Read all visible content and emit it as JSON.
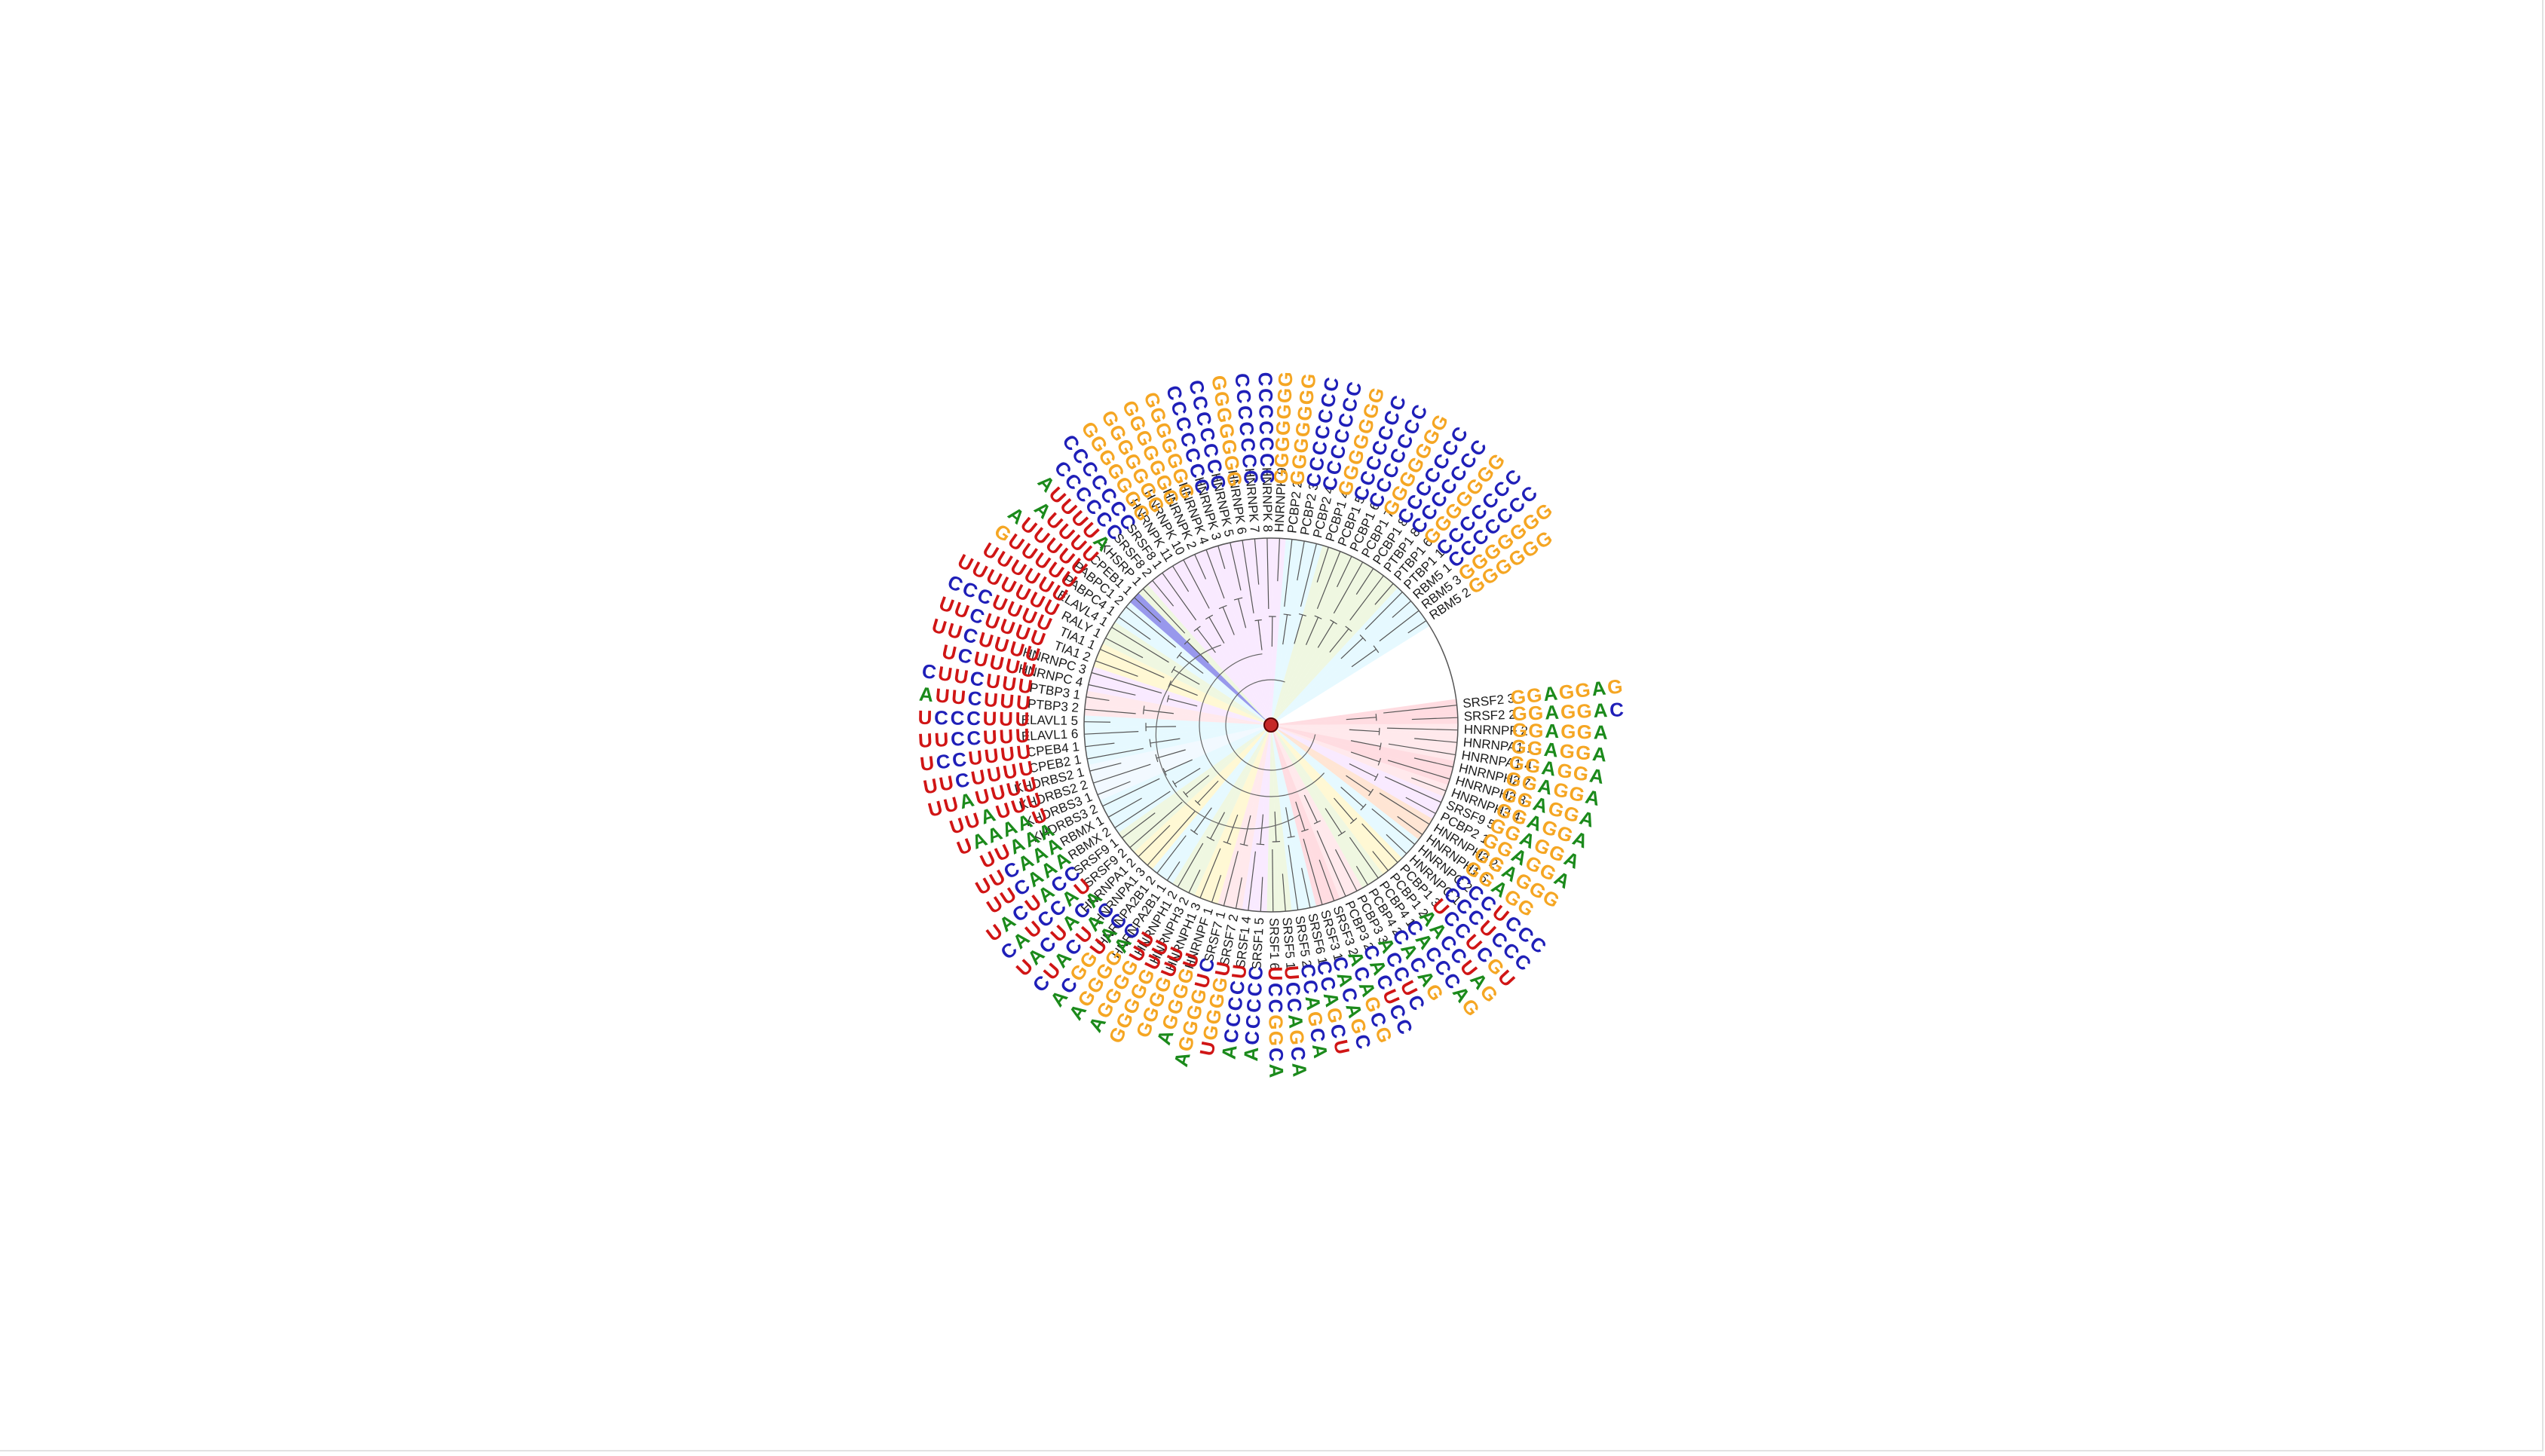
{
  "figure": {
    "type": "circular-dendrogram-with-sequence-logos",
    "root_color": "#c62828",
    "nucleotide_colors": {
      "A": "#1b8a1b",
      "C": "#1f1fb8",
      "G": "#f5a623",
      "U": "#d01515"
    },
    "leaves": [
      {
        "label": "SRSF2 3",
        "clade": "#ffc0c8",
        "motif": "GGAGGAG"
      },
      {
        "label": "SRSF2 2",
        "clade": "#ffc0c8",
        "motif": "GGAGGAC"
      },
      {
        "label": "HNRNPF 2",
        "clade": "#ffd7dc",
        "motif": "GGAGGA"
      },
      {
        "label": "HNRNPA1 1",
        "clade": "#ffd7dc",
        "motif": "GGAGGA"
      },
      {
        "label": "HNRNPA1 4",
        "clade": "#ffd7dc",
        "motif": "GGAGGA"
      },
      {
        "label": "HNRNPH2 7",
        "clade": "#ffc0c8",
        "motif": "GGAGGA"
      },
      {
        "label": "HNRNPH2 3",
        "clade": "#ffc0c8",
        "motif": "GGAGGA"
      },
      {
        "label": "HNRNPH3 4",
        "clade": "#ffd7dc",
        "motif": "GGAGGA"
      },
      {
        "label": "SRSF9 5",
        "clade": "#f4d9ff",
        "motif": "GGAGGA"
      },
      {
        "label": "PCBP2 1",
        "clade": "#f4d9ff",
        "motif": "GGAGGA"
      },
      {
        "label": "HNRNPH2 2",
        "clade": "#ffd0b0",
        "motif": "GGAGGG"
      },
      {
        "label": "HNRNPH1 5",
        "clade": "#ffd0b0",
        "motif": "GGAGG"
      },
      {
        "label": "HNRNPC 2",
        "clade": "#d2f4ff",
        "motif": "CCCUCCC"
      },
      {
        "label": "HNRNPC 1",
        "clade": "#d2f4ff",
        "motif": "CCCUCCC"
      },
      {
        "label": "PCBP1 3",
        "clade": "#fff3b0",
        "motif": "UCCUCGU"
      },
      {
        "label": "PCBP1 2",
        "clade": "#fff3b0",
        "motif": "AACCUAG"
      },
      {
        "label": "PCBP4 1",
        "clade": "#e2f0c8",
        "motif": "CACCCAG"
      },
      {
        "label": "PCBP4 2",
        "clade": "#e2f0c8",
        "motif": "CACAG"
      },
      {
        "label": "PCBP3 3",
        "clade": "#ffd7dc",
        "motif": "ACCUC"
      },
      {
        "label": "PCBP3 2",
        "clade": "#ffd7dc",
        "motif": "CACUCC"
      },
      {
        "label": "SRSF3 2",
        "clade": "#ffc0c8",
        "motif": "ACAGCG"
      },
      {
        "label": "SRSF3 1",
        "clade": "#ffc0c8",
        "motif": "CACAGC"
      },
      {
        "label": "SRSF6 1",
        "clade": "#d2f4ff",
        "motif": "CCAGCU"
      },
      {
        "label": "SRSF5 2",
        "clade": "#d2f4ff",
        "motif": "CCAGCA"
      },
      {
        "label": "SRSF5 1",
        "clade": "#e2f0c8",
        "motif": "UCCAGCA"
      },
      {
        "label": "SRSF1 6",
        "clade": "#e2f0c8",
        "motif": "UCCGGCA"
      },
      {
        "label": "SRSF1 5",
        "clade": "#f4d9ff",
        "motif": "CCCCCA"
      },
      {
        "label": "SRSF1 4",
        "clade": "#f4d9ff",
        "motif": "UCCCCA"
      },
      {
        "label": "SRSF7 2",
        "clade": "#ffd7dc",
        "motif": "UGGGGU"
      },
      {
        "label": "SRSF7 1",
        "clade": "#ffd7dc",
        "motif": "CUGGGGA"
      },
      {
        "label": "HNRNPF 1",
        "clade": "#fff3b0",
        "motif": "UGGGGA"
      },
      {
        "label": "HNRNPH1 3",
        "clade": "#fff3b0",
        "motif": "UUGGGG"
      },
      {
        "label": "HNRNPH3 2",
        "clade": "#e2f0c8",
        "motif": "UUGGGGG"
      },
      {
        "label": "HNRNPH1 2",
        "clade": "#e2f0c8",
        "motif": "UUGGGGA"
      },
      {
        "label": "HNRNPA2B1 1",
        "clade": "#d2f4ff",
        "motif": "CAGGGGA"
      },
      {
        "label": "HNRNPA2B1 2",
        "clade": "#d2f4ff",
        "motif": "CAUGGCA"
      },
      {
        "label": "HNRNPA1 3",
        "clade": "#fff3b0",
        "motif": "CAUCAUC"
      },
      {
        "label": "HNRNPA1 2",
        "clade": "#fff3b0",
        "motif": "ACAUCAU"
      },
      {
        "label": "SRSF9 2",
        "clade": "#e2f0c8",
        "motif": "UACCUAC"
      },
      {
        "label": "SRSF9 1",
        "clade": "#e2f0c8",
        "motif": "CCAUCAU"
      },
      {
        "label": "RBMX 2",
        "clade": "#d2f4ff",
        "motif": "AAACUU"
      },
      {
        "label": "RBMX 1",
        "clade": "#d2f4ff",
        "motif": "AAACUU"
      },
      {
        "label": "KHDRBS3 2",
        "clade": "#d2f4ff",
        "motif": "AAAUU"
      },
      {
        "label": "KHDRBS3 1",
        "clade": "#e8f4ff",
        "motif": "UAAAAU"
      },
      {
        "label": "KHDRBS2 2",
        "clade": "#e8f4ff",
        "motif": "UUUAUU"
      },
      {
        "label": "KHDRBS2 1",
        "clade": "#e8f4ff",
        "motif": "UUUUAUU"
      },
      {
        "label": "CPEB2 1",
        "clade": "#d2f4ff",
        "motif": "UUUUCUU"
      },
      {
        "label": "CPEB4 1",
        "clade": "#d2f4ff",
        "motif": "UUUUCCU"
      },
      {
        "label": "ELAVL1 6",
        "clade": "#d2f4ff",
        "motif": "UUUCCUU"
      },
      {
        "label": "ELAVL1 5",
        "clade": "#d2f4ff",
        "motif": "UUUCCCU"
      },
      {
        "label": "PTBP3 2",
        "clade": "#ffd7dc",
        "motif": "UUUCUUA"
      },
      {
        "label": "PTBP3 1",
        "clade": "#ffd7dc",
        "motif": "UUUCUUC"
      },
      {
        "label": "HNRNPC 4",
        "clade": "#f4d9ff",
        "motif": "UUUUCU"
      },
      {
        "label": "HNRNPC 3",
        "clade": "#f4d9ff",
        "motif": "UUUUCUU"
      },
      {
        "label": "TIA1 2",
        "clade": "#fff3b0",
        "motif": "UUUUCUU"
      },
      {
        "label": "TIA1 1",
        "clade": "#fff3b0",
        "motif": "UUUUCCC"
      },
      {
        "label": "RALY 1",
        "clade": "#e2f0c8",
        "motif": "UUUUUUU"
      },
      {
        "label": "ELAVL4 1",
        "clade": "#e2f0c8",
        "motif": "UUUUUU"
      },
      {
        "label": "PABPC4 1",
        "clade": "#d2f4ff",
        "motif": "UUUUUG"
      },
      {
        "label": "PABPC1 2",
        "clade": "#d2f4ff",
        "motif": "UUUUUA"
      },
      {
        "label": "CPEB1 1",
        "clade": "#4444dd",
        "motif": "UUUUA"
      },
      {
        "label": "KHSRP 1",
        "clade": "#e2f0c8",
        "motif": "AUUUUA"
      },
      {
        "label": "SRSF8 2",
        "clade": "#f4d9ff",
        "motif": "CCCCCC"
      },
      {
        "label": "SRSF8 1",
        "clade": "#f4d9ff",
        "motif": "CCCCCCC"
      },
      {
        "label": "HNRNPK 11",
        "clade": "#f4d9ff",
        "motif": "GGGGGGG"
      },
      {
        "label": "HNRNPK 10",
        "clade": "#f4d9ff",
        "motif": "GGGGGGG"
      },
      {
        "label": "HNRNPK 2",
        "clade": "#f4d9ff",
        "motif": "GGGGGGG"
      },
      {
        "label": "HNRNPK 4",
        "clade": "#f4d9ff",
        "motif": "GGGGGGG"
      },
      {
        "label": "HNRNPK 3",
        "clade": "#f4d9ff",
        "motif": "CCCCCCC"
      },
      {
        "label": "HNRNPK 5",
        "clade": "#f4d9ff",
        "motif": "CCCCCCC"
      },
      {
        "label": "HNRNPK 6",
        "clade": "#f4d9ff",
        "motif": "GGGGGGG"
      },
      {
        "label": "HNRNPK 7",
        "clade": "#f4d9ff",
        "motif": "CCCCCCC"
      },
      {
        "label": "HNRNPK 8",
        "clade": "#f4d9ff",
        "motif": "CCCCCCC"
      },
      {
        "label": "HNRNPK 9",
        "clade": "#f4d9ff",
        "motif": "GGGGGGG"
      },
      {
        "label": "PCBP2 2",
        "clade": "#d2f4ff",
        "motif": "GGGGGGG"
      },
      {
        "label": "PCBP2 3",
        "clade": "#d2f4ff",
        "motif": "CCCCCCC"
      },
      {
        "label": "PCBP2 4",
        "clade": "#d2f4ff",
        "motif": "CCCCCCC"
      },
      {
        "label": "PCBP1 4",
        "clade": "#e2f0c8",
        "motif": "GGGGGGG"
      },
      {
        "label": "PCBP1 5",
        "clade": "#e2f0c8",
        "motif": "CCCCCCC"
      },
      {
        "label": "PCBP1 6",
        "clade": "#e2f0c8",
        "motif": "CCCCCCC"
      },
      {
        "label": "PCBP1 7",
        "clade": "#e2f0c8",
        "motif": "GGGGGGG"
      },
      {
        "label": "PCBP1 8",
        "clade": "#e2f0c8",
        "motif": "CCCCCCC"
      },
      {
        "label": "PTBP1 8",
        "clade": "#e2f0c8",
        "motif": "CCCCCCC"
      },
      {
        "label": "PTBP1 6",
        "clade": "#e2f0c8",
        "motif": "GGGGGGG"
      },
      {
        "label": "PTBP1 1",
        "clade": "#d2f4ff",
        "motif": "CCCCCCC"
      },
      {
        "label": "RBM5 1",
        "clade": "#d2f4ff",
        "motif": "CCCCCCC"
      },
      {
        "label": "RBM5 3",
        "clade": "#d2f4ff",
        "motif": "GGGGGGG"
      },
      {
        "label": "RBM5 2",
        "clade": "#d2f4ff",
        "motif": "GGGGGG"
      }
    ]
  }
}
